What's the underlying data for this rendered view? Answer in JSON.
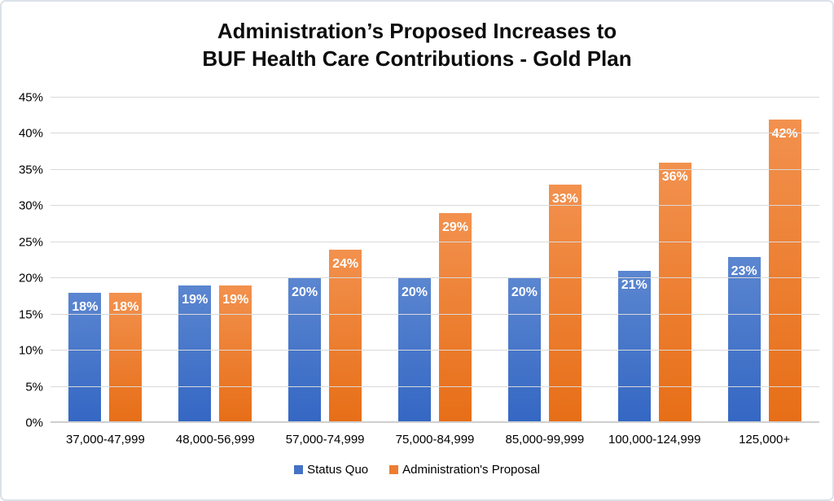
{
  "title": {
    "line1": "Administration’s Proposed Increases to",
    "line2": "BUF Health Care Contributions - Gold Plan"
  },
  "chart_data": {
    "type": "bar",
    "title": "Administration’s Proposed Increases to BUF Health Care Contributions - Gold Plan",
    "categories": [
      "37,000-47,999",
      "48,000-56,999",
      "57,000-74,999",
      "75,000-84,999",
      "85,000-99,999",
      "100,000-124,999",
      "125,000+"
    ],
    "series": [
      {
        "name": "Status Quo",
        "values": [
          18,
          19,
          20,
          20,
          20,
          21,
          23
        ],
        "color_top": "#5b86d0",
        "color_bottom": "#3467c4",
        "legend_color": "#4472c4"
      },
      {
        "name": "Administration's Proposal",
        "values": [
          18,
          19,
          24,
          29,
          33,
          36,
          42
        ],
        "color_top": "#f2914e",
        "color_bottom": "#e76e17",
        "legend_color": "#ed7d31"
      }
    ],
    "value_suffix": "%",
    "data_labels": [
      "18%",
      "19%",
      "20%",
      "20%",
      "20%",
      "21%",
      "23%",
      "18%",
      "19%",
      "24%",
      "29%",
      "33%",
      "36%",
      "42%"
    ],
    "y_ticks": [
      "0%",
      "5%",
      "10%",
      "15%",
      "20%",
      "25%",
      "30%",
      "35%",
      "40%",
      "45%"
    ],
    "y_tick_values": [
      0,
      5,
      10,
      15,
      20,
      25,
      30,
      35,
      40,
      45
    ],
    "ylim": [
      0,
      45
    ],
    "xlabel": "",
    "ylabel": "",
    "grid": true,
    "legend_position": "bottom",
    "colors": {
      "gridline": "#d9d9d9",
      "axis_line": "#cfcfcf",
      "frame_border": "#dce1e8",
      "background": "#ffffff",
      "label_text": "#ffffff",
      "text": "#000000"
    }
  }
}
